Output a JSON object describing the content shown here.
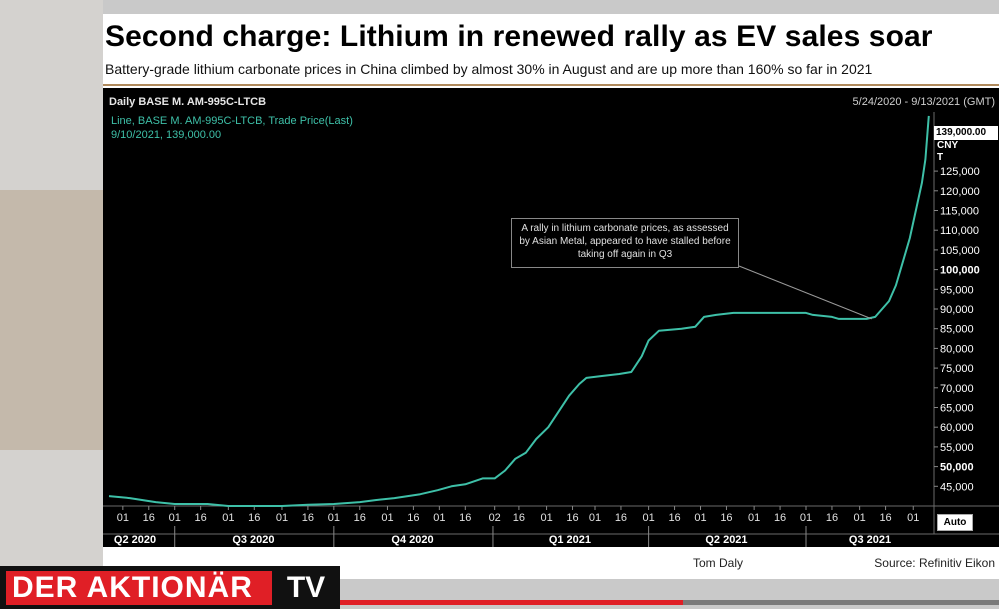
{
  "headline": "Second charge: Lithium in renewed rally as EV sales soar",
  "subheadline": "Battery-grade lithium carbonate prices in China climbed by almost 30% in August and are up more than 160% so far in 2021",
  "panel": {
    "title": "Daily BASE M. AM-995C-LTCB",
    "date_range": "5/24/2020 - 9/13/2021 (GMT)",
    "legend_line1": "Line, BASE M. AM-995C-LTCB, Trade Price(Last)",
    "legend_line2": "9/10/2021, 139,000.00",
    "last_value_tag": "139,000.00",
    "unit_line1": "CNY",
    "unit_line2": "T",
    "auto_label": "Auto"
  },
  "annotation": "A rally in lithium carbonate prices, as assessed by Asian Metal, appeared to have stalled before taking off again in Q3",
  "footer": {
    "author": "Tom Daly",
    "source": "Source: Refinitiv Eikon"
  },
  "branding": {
    "logo_text": "DER AKTIONÄR",
    "logo_tv": "TV"
  },
  "video_progress": 0.52,
  "colors": {
    "line": "#3ec0a8",
    "background": "#000000",
    "logo_red": "#e01f26"
  },
  "chart_data": {
    "type": "line",
    "title": "Daily BASE M. AM-995C-LTCB",
    "ylim": [
      40000,
      140000
    ],
    "yticks": [
      {
        "value": 45000,
        "label": "45,000",
        "bold": false
      },
      {
        "value": 50000,
        "label": "50,000",
        "bold": true
      },
      {
        "value": 55000,
        "label": "55,000",
        "bold": false
      },
      {
        "value": 60000,
        "label": "60,000",
        "bold": false
      },
      {
        "value": 65000,
        "label": "65,000",
        "bold": false
      },
      {
        "value": 70000,
        "label": "70,000",
        "bold": false
      },
      {
        "value": 75000,
        "label": "75,000",
        "bold": false
      },
      {
        "value": 80000,
        "label": "80,000",
        "bold": false
      },
      {
        "value": 85000,
        "label": "85,000",
        "bold": false
      },
      {
        "value": 90000,
        "label": "90,000",
        "bold": false
      },
      {
        "value": 95000,
        "label": "95,000",
        "bold": false
      },
      {
        "value": 100000,
        "label": "100,000",
        "bold": true
      },
      {
        "value": 105000,
        "label": "105,000",
        "bold": false
      },
      {
        "value": 110000,
        "label": "110,000",
        "bold": false
      },
      {
        "value": 115000,
        "label": "115,000",
        "bold": false
      },
      {
        "value": 120000,
        "label": "120,000",
        "bold": false
      },
      {
        "value": 125000,
        "label": "125,000",
        "bold": false
      }
    ],
    "xlim": [
      "2020-05-24",
      "2021-09-13"
    ],
    "xticks": [
      {
        "date": "2020-06-01",
        "label": "01"
      },
      {
        "date": "2020-06-16",
        "label": "16"
      },
      {
        "date": "2020-07-01",
        "label": "01"
      },
      {
        "date": "2020-07-16",
        "label": "16"
      },
      {
        "date": "2020-08-01",
        "label": "01"
      },
      {
        "date": "2020-08-16",
        "label": "16"
      },
      {
        "date": "2020-09-01",
        "label": "01"
      },
      {
        "date": "2020-09-16",
        "label": "16"
      },
      {
        "date": "2020-10-01",
        "label": "01"
      },
      {
        "date": "2020-10-16",
        "label": "16"
      },
      {
        "date": "2020-11-01",
        "label": "01"
      },
      {
        "date": "2020-11-16",
        "label": "16"
      },
      {
        "date": "2020-12-01",
        "label": "01"
      },
      {
        "date": "2020-12-16",
        "label": "16"
      },
      {
        "date": "2021-01-02",
        "label": "02"
      },
      {
        "date": "2021-01-16",
        "label": "16"
      },
      {
        "date": "2021-02-01",
        "label": "01"
      },
      {
        "date": "2021-02-16",
        "label": "16"
      },
      {
        "date": "2021-03-01",
        "label": "01"
      },
      {
        "date": "2021-03-16",
        "label": "16"
      },
      {
        "date": "2021-04-01",
        "label": "01"
      },
      {
        "date": "2021-04-16",
        "label": "16"
      },
      {
        "date": "2021-05-01",
        "label": "01"
      },
      {
        "date": "2021-05-16",
        "label": "16"
      },
      {
        "date": "2021-06-01",
        "label": "01"
      },
      {
        "date": "2021-06-16",
        "label": "16"
      },
      {
        "date": "2021-07-01",
        "label": "01"
      },
      {
        "date": "2021-07-16",
        "label": "16"
      },
      {
        "date": "2021-08-01",
        "label": "01"
      },
      {
        "date": "2021-08-16",
        "label": "16"
      },
      {
        "date": "2021-09-01",
        "label": "01"
      }
    ],
    "quarters": [
      {
        "label": "Q2 2020",
        "start": "2020-05-24",
        "end": "2020-06-30"
      },
      {
        "label": "Q3 2020",
        "start": "2020-07-01",
        "end": "2020-09-30"
      },
      {
        "label": "Q4 2020",
        "start": "2020-10-01",
        "end": "2020-12-31"
      },
      {
        "label": "Q1 2021",
        "start": "2021-01-01",
        "end": "2021-03-31"
      },
      {
        "label": "Q2 2021",
        "start": "2021-04-01",
        "end": "2021-06-30"
      },
      {
        "label": "Q3 2021",
        "start": "2021-07-01",
        "end": "2021-09-13"
      }
    ],
    "series": [
      {
        "name": "BASE M. AM-995C-LTCB",
        "points": [
          [
            "2020-05-24",
            42500
          ],
          [
            "2020-06-05",
            42000
          ],
          [
            "2020-06-20",
            41000
          ],
          [
            "2020-07-01",
            40500
          ],
          [
            "2020-07-20",
            40500
          ],
          [
            "2020-08-01",
            40000
          ],
          [
            "2020-08-20",
            40000
          ],
          [
            "2020-09-01",
            40000
          ],
          [
            "2020-09-16",
            40300
          ],
          [
            "2020-10-01",
            40500
          ],
          [
            "2020-10-16",
            41000
          ],
          [
            "2020-10-25",
            41500
          ],
          [
            "2020-11-05",
            42000
          ],
          [
            "2020-11-20",
            43000
          ],
          [
            "2020-11-30",
            44000
          ],
          [
            "2020-12-08",
            45000
          ],
          [
            "2020-12-16",
            45500
          ],
          [
            "2020-12-26",
            47000
          ],
          [
            "2021-01-02",
            47000
          ],
          [
            "2021-01-08",
            49000
          ],
          [
            "2021-01-14",
            52000
          ],
          [
            "2021-01-20",
            53500
          ],
          [
            "2021-01-26",
            57000
          ],
          [
            "2021-02-02",
            60000
          ],
          [
            "2021-02-08",
            64000
          ],
          [
            "2021-02-14",
            68000
          ],
          [
            "2021-02-20",
            71000
          ],
          [
            "2021-02-24",
            72500
          ],
          [
            "2021-03-05",
            73000
          ],
          [
            "2021-03-15",
            73500
          ],
          [
            "2021-03-22",
            74000
          ],
          [
            "2021-03-28",
            78000
          ],
          [
            "2021-04-01",
            82000
          ],
          [
            "2021-04-07",
            84500
          ],
          [
            "2021-04-20",
            85000
          ],
          [
            "2021-04-28",
            85500
          ],
          [
            "2021-05-03",
            88000
          ],
          [
            "2021-05-10",
            88500
          ],
          [
            "2021-05-20",
            89000
          ],
          [
            "2021-06-01",
            89000
          ],
          [
            "2021-06-16",
            89000
          ],
          [
            "2021-07-01",
            89000
          ],
          [
            "2021-07-05",
            88500
          ],
          [
            "2021-07-16",
            88000
          ],
          [
            "2021-07-20",
            87500
          ],
          [
            "2021-08-05",
            87500
          ],
          [
            "2021-08-10",
            88000
          ],
          [
            "2021-08-14",
            90000
          ],
          [
            "2021-08-18",
            92000
          ],
          [
            "2021-08-22",
            96000
          ],
          [
            "2021-08-26",
            102000
          ],
          [
            "2021-08-30",
            108000
          ],
          [
            "2021-09-03",
            116000
          ],
          [
            "2021-09-06",
            122000
          ],
          [
            "2021-09-08",
            128000
          ],
          [
            "2021-09-10",
            139000
          ]
        ]
      }
    ],
    "annotation": {
      "text": "A rally in lithium carbonate prices, as assessed by Asian Metal, appeared to have stalled before taking off again in Q3",
      "points_to": [
        "2021-08-08",
        87500
      ]
    }
  }
}
